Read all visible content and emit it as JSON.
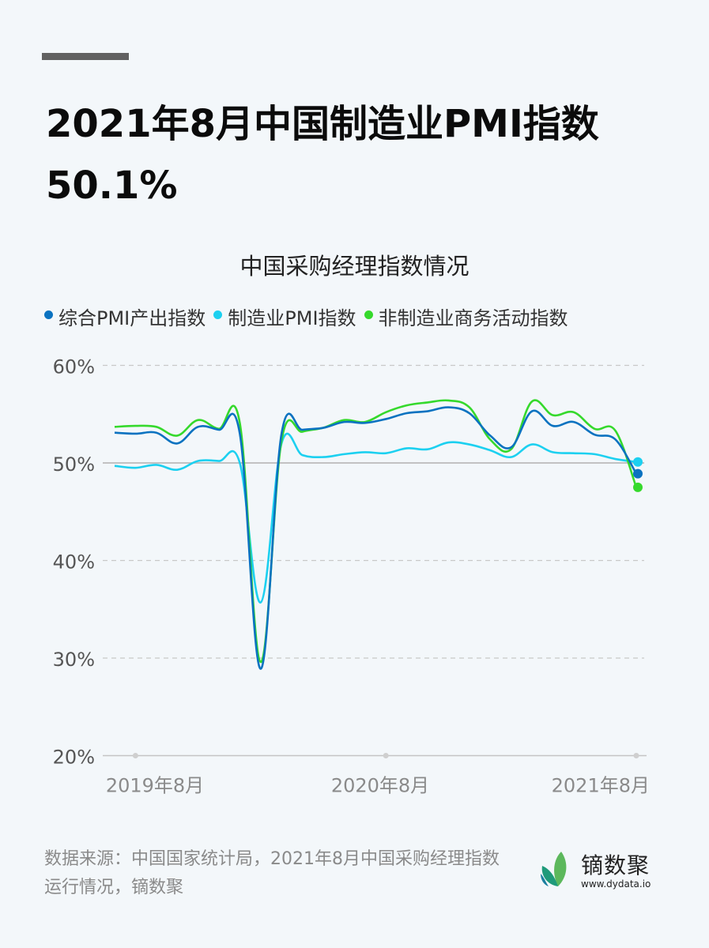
{
  "header": {
    "title_line1": "2021年8月中国制造业PMI指数",
    "title_line2": "50.1%"
  },
  "chart": {
    "title": "中国采购经理指数情况",
    "legend": [
      {
        "label": "综合PMI产出指数",
        "color": "#0a72c0"
      },
      {
        "label": "制造业PMI指数",
        "color": "#1cd0f0"
      },
      {
        "label": "非制造业商务活动指数",
        "color": "#35d92c"
      }
    ],
    "y_ticks": [
      "60%",
      "50%",
      "40%",
      "30%",
      "20%"
    ],
    "x_ticks": [
      "2019年8月",
      "2020年8月",
      "2021年8月"
    ]
  },
  "chart_data": {
    "type": "line",
    "title": "中国采购经理指数情况",
    "xlabel": "",
    "ylabel": "",
    "ylim": [
      20,
      60
    ],
    "y_ticks": [
      20,
      30,
      40,
      50,
      60
    ],
    "x_tick_labels": [
      "2019年8月",
      "2020年8月",
      "2021年8月"
    ],
    "grid": "horizontal dashed",
    "legend_position": "top",
    "reference_line": 50,
    "x": [
      "2019-07",
      "2019-08",
      "2019-09",
      "2019-10",
      "2019-11",
      "2019-12",
      "2020-01",
      "2020-02",
      "2020-03",
      "2020-04",
      "2020-05",
      "2020-06",
      "2020-07",
      "2020-08",
      "2020-09",
      "2020-10",
      "2020-11",
      "2020-12",
      "2021-01",
      "2021-02",
      "2021-03",
      "2021-04",
      "2021-05",
      "2021-06",
      "2021-07",
      "2021-08"
    ],
    "series": [
      {
        "name": "综合PMI产出指数",
        "color": "#0a72c0",
        "values": [
          53.1,
          53.0,
          53.1,
          52.0,
          53.7,
          53.4,
          53.0,
          28.9,
          53.0,
          53.4,
          53.6,
          54.2,
          54.1,
          54.5,
          55.1,
          55.3,
          55.7,
          55.1,
          52.8,
          51.6,
          55.3,
          53.8,
          54.2,
          52.9,
          52.4,
          48.9
        ]
      },
      {
        "name": "制造业PMI指数",
        "color": "#1cd0f0",
        "values": [
          49.7,
          49.5,
          49.8,
          49.3,
          50.2,
          50.2,
          50.0,
          35.7,
          52.0,
          50.8,
          50.6,
          50.9,
          51.1,
          51.0,
          51.5,
          51.4,
          52.1,
          51.9,
          51.3,
          50.6,
          51.9,
          51.1,
          51.0,
          50.9,
          50.4,
          50.1
        ]
      },
      {
        "name": "非制造业商务活动指数",
        "color": "#35d92c",
        "values": [
          53.7,
          53.8,
          53.7,
          52.8,
          54.4,
          53.5,
          54.1,
          29.6,
          52.3,
          53.2,
          53.6,
          54.4,
          54.2,
          55.2,
          55.9,
          56.2,
          56.4,
          55.7,
          52.4,
          51.4,
          56.3,
          54.9,
          55.2,
          53.5,
          53.3,
          47.5
        ]
      }
    ]
  },
  "footer": {
    "source_text": "数据来源：中国国家统计局，2021年8月中国采购经理指数运行情况，镝数聚",
    "logo_name": "镝数聚",
    "logo_url": "www.dydata.io"
  }
}
